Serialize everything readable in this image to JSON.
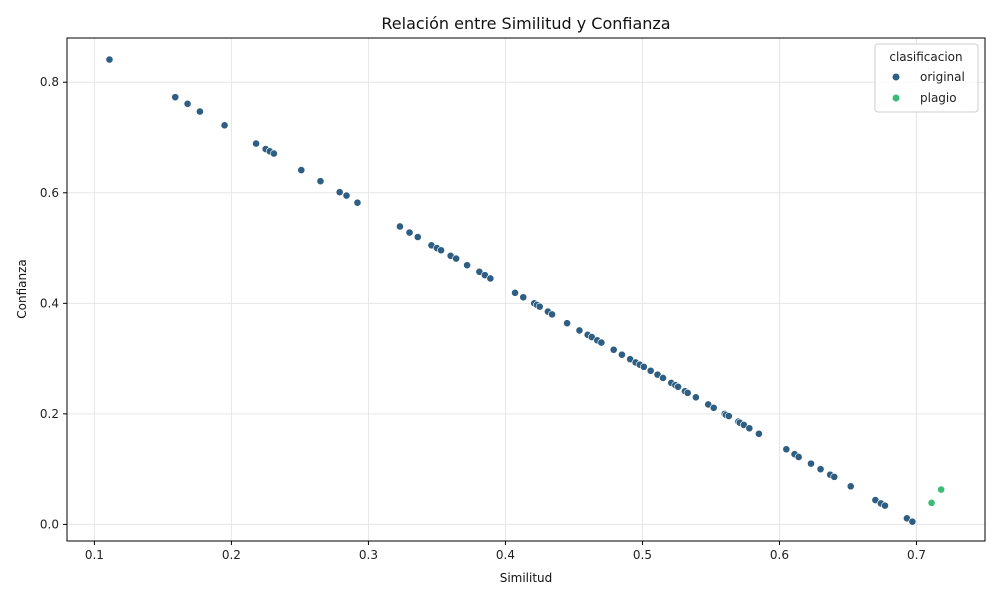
{
  "chart_data": {
    "type": "scatter",
    "title": "Relación entre Similitud y Confianza",
    "xlabel": "Similitud",
    "ylabel": "Confianza",
    "xlim": [
      0.08,
      0.75
    ],
    "ylim": [
      -0.03,
      0.88
    ],
    "xticks": [
      0.1,
      0.2,
      0.3,
      0.4,
      0.5,
      0.6,
      0.7
    ],
    "yticks": [
      0.0,
      0.2,
      0.4,
      0.6,
      0.8
    ],
    "grid": true,
    "legend": {
      "title": "clasificacion",
      "placement": "top-right"
    },
    "series": [
      {
        "name": "original",
        "color": "#2e5e82",
        "points": [
          [
            0.111,
            0.841
          ],
          [
            0.159,
            0.773
          ],
          [
            0.168,
            0.761
          ],
          [
            0.177,
            0.747
          ],
          [
            0.195,
            0.722
          ],
          [
            0.218,
            0.689
          ],
          [
            0.225,
            0.679
          ],
          [
            0.228,
            0.675
          ],
          [
            0.231,
            0.671
          ],
          [
            0.251,
            0.641
          ],
          [
            0.265,
            0.621
          ],
          [
            0.279,
            0.601
          ],
          [
            0.284,
            0.595
          ],
          [
            0.292,
            0.582
          ],
          [
            0.323,
            0.539
          ],
          [
            0.33,
            0.528
          ],
          [
            0.336,
            0.52
          ],
          [
            0.346,
            0.505
          ],
          [
            0.35,
            0.5
          ],
          [
            0.353,
            0.496
          ],
          [
            0.36,
            0.486
          ],
          [
            0.364,
            0.481
          ],
          [
            0.372,
            0.469
          ],
          [
            0.381,
            0.457
          ],
          [
            0.385,
            0.451
          ],
          [
            0.389,
            0.445
          ],
          [
            0.407,
            0.419
          ],
          [
            0.413,
            0.411
          ],
          [
            0.421,
            0.4
          ],
          [
            0.423,
            0.397
          ],
          [
            0.425,
            0.394
          ],
          [
            0.431,
            0.385
          ],
          [
            0.434,
            0.38
          ],
          [
            0.445,
            0.364
          ],
          [
            0.454,
            0.351
          ],
          [
            0.46,
            0.343
          ],
          [
            0.463,
            0.339
          ],
          [
            0.467,
            0.333
          ],
          [
            0.47,
            0.329
          ],
          [
            0.479,
            0.316
          ],
          [
            0.485,
            0.307
          ],
          [
            0.491,
            0.299
          ],
          [
            0.495,
            0.293
          ],
          [
            0.498,
            0.289
          ],
          [
            0.501,
            0.285
          ],
          [
            0.506,
            0.278
          ],
          [
            0.511,
            0.271
          ],
          [
            0.515,
            0.265
          ],
          [
            0.521,
            0.256
          ],
          [
            0.524,
            0.252
          ],
          [
            0.526,
            0.249
          ],
          [
            0.531,
            0.241
          ],
          [
            0.533,
            0.238
          ],
          [
            0.539,
            0.23
          ],
          [
            0.548,
            0.217
          ],
          [
            0.552,
            0.211
          ],
          [
            0.56,
            0.2
          ],
          [
            0.561,
            0.198
          ],
          [
            0.563,
            0.196
          ],
          [
            0.57,
            0.186
          ],
          [
            0.571,
            0.184
          ],
          [
            0.574,
            0.18
          ],
          [
            0.578,
            0.174
          ],
          [
            0.585,
            0.164
          ],
          [
            0.605,
            0.136
          ],
          [
            0.611,
            0.127
          ],
          [
            0.614,
            0.122
          ],
          [
            0.623,
            0.11
          ],
          [
            0.63,
            0.1
          ],
          [
            0.637,
            0.09
          ],
          [
            0.64,
            0.086
          ],
          [
            0.652,
            0.069
          ],
          [
            0.67,
            0.044
          ],
          [
            0.674,
            0.038
          ],
          [
            0.677,
            0.034
          ],
          [
            0.693,
            0.011
          ],
          [
            0.697,
            0.005
          ]
        ]
      },
      {
        "name": "plagio",
        "color": "#3bbb75",
        "points": [
          [
            0.711,
            0.039
          ],
          [
            0.718,
            0.063
          ]
        ]
      }
    ]
  }
}
